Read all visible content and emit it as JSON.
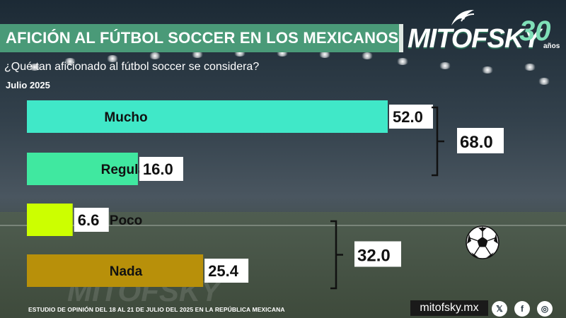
{
  "header": {
    "title": "AFICIÓN AL FÚTBOL SOCCER EN LOS MEXICANOS",
    "question": "¿Qué tan aficionado al fútbol soccer se considera?",
    "date": "Julio 2025"
  },
  "logo": {
    "brand": "MITOFSKY",
    "number": "30",
    "years": "años"
  },
  "chart_data": {
    "type": "bar",
    "orientation": "horizontal",
    "categories": [
      "Mucho",
      "Regular",
      "Poco",
      "Nada"
    ],
    "values": [
      52.0,
      16.0,
      6.6,
      25.4
    ],
    "value_labels": [
      "52.0",
      "16.0",
      "6.6",
      "25.4"
    ],
    "colors": [
      "#40e8c8",
      "#40e8a0",
      "#ccff00",
      "#b8900a"
    ],
    "groups": [
      {
        "categories": [
          "Mucho",
          "Regular"
        ],
        "total": "68.0"
      },
      {
        "categories": [
          "Poco",
          "Nada"
        ],
        "total": "32.0"
      }
    ],
    "xlim": [
      0,
      52.0
    ],
    "grid": false
  },
  "footer": {
    "study": "ESTUDIO DE OPINIÓN DEL 18 AL 21 DE JULIO DEL 2025 EN LA REPÚBLICA MEXICANA",
    "site": "mitofsky.mx",
    "social_icons": [
      "x-icon",
      "facebook-icon",
      "instagram-icon"
    ]
  }
}
